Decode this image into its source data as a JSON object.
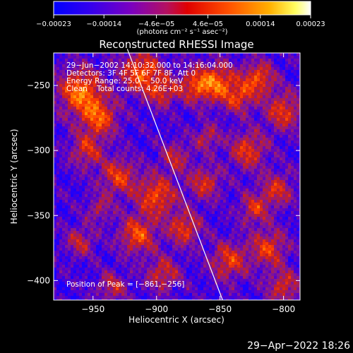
{
  "chart_data": {
    "type": "heatmap",
    "title": "Reconstructed RHESSI Image",
    "xlabel": "Heliocentric X (arcsec)",
    "ylabel": "Heliocentric Y (arcsec)",
    "xlim": [
      -981,
      -787
    ],
    "ylim": [
      -415,
      -225
    ],
    "x_ticks": [
      -950,
      -900,
      -850,
      -800
    ],
    "x_tick_labels": [
      "−950",
      "−900",
      "−850",
      "−800"
    ],
    "y_ticks": [
      -250,
      -300,
      -350,
      -400
    ],
    "y_tick_labels": [
      "−250",
      "−300",
      "−350",
      "−400"
    ],
    "colorbar": {
      "range": [
        -0.00023,
        0.00023
      ],
      "tick_values": [
        -0.00023,
        -0.00014,
        -4.6e-05,
        4.6e-05,
        0.00014,
        0.00023
      ],
      "tick_labels": [
        "−0.00023",
        "−0.00014",
        "−4.6e−05",
        "4.6e−05",
        "0.00014",
        "0.00023"
      ],
      "units_label": "(photons cm⁻² s⁻¹ asec⁻²)"
    },
    "annotations": [
      "29−Jun−2002 14:10:32.000 to 14:16:04.000",
      "Detectors: 3F 4F 5F 6F 7F 8F, Att 0",
      "Energy Range: 25.0 − 50.0 keV",
      "Clean    Total counts: 4.26E+03"
    ],
    "peak_label": "Position of Peak = [−861,−256]",
    "peak_position": [
      -861,
      -256
    ],
    "limb_line": [
      [
        -923,
        -222
      ],
      [
        -848,
        -415
      ]
    ],
    "timestamp": "29−Apr−2022 18:26",
    "colors": {
      "background": "#000000",
      "text": "#ffffff",
      "colormap": [
        "#1a00ff",
        "#5a00c8",
        "#8a1a8a",
        "#c81e1e",
        "#ff3c00",
        "#ff8c00",
        "#ffd040",
        "#ffffff"
      ]
    }
  }
}
